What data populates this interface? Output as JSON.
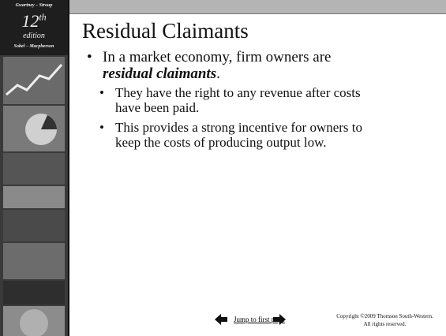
{
  "sidebar": {
    "authors_top": "Gwartney – Stroup",
    "edition_number": "12",
    "edition_suffix": "th",
    "edition_word": "edition",
    "authors_bottom": "Sobel – Macpherson"
  },
  "slide": {
    "title": "Residual Claimants",
    "bullets": [
      {
        "parts": [
          "In a market economy, firm owners are ",
          "residual claimants",
          "."
        ],
        "sub_bullets": [
          "They have the right to any revenue after costs have been paid.",
          "This provides a strong incentive for owners to keep the costs of producing output low."
        ]
      }
    ]
  },
  "footer": {
    "link": "Jump to first page",
    "copyright_lines": [
      "Copyright ©2009  Thomson South-Western.",
      "All rights reserved."
    ]
  }
}
